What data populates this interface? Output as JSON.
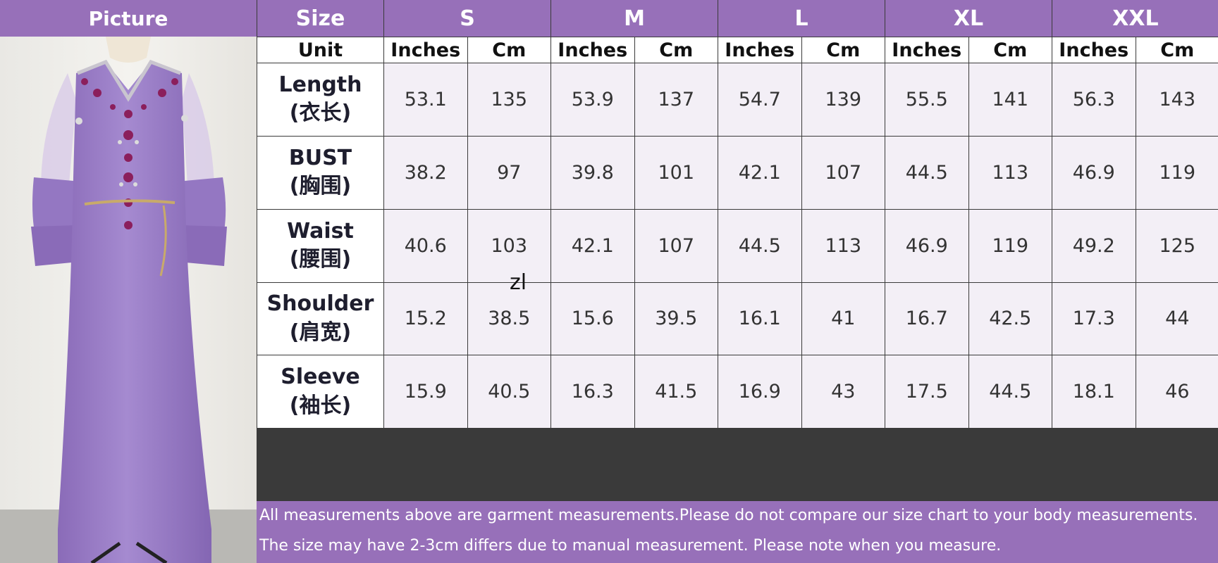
{
  "picture_header": "Picture",
  "size_header": "Size",
  "sizes": [
    "S",
    "M",
    "L",
    "XL",
    "XXL"
  ],
  "unit_row": {
    "label": "Unit",
    "inches": "Inches",
    "cm": "Cm"
  },
  "rows": [
    {
      "label": "Length",
      "label_cn": "(衣长)",
      "values": [
        "53.1",
        "135",
        "53.9",
        "137",
        "54.7",
        "139",
        "55.5",
        "141",
        "56.3",
        "143"
      ]
    },
    {
      "label": "BUST",
      "label_cn": "(胸围)",
      "values": [
        "38.2",
        "97",
        "39.8",
        "101",
        "42.1",
        "107",
        "44.5",
        "113",
        "46.9",
        "119"
      ]
    },
    {
      "label": "Waist",
      "label_cn": "(腰围)",
      "values": [
        "40.6",
        "103",
        "42.1",
        "107",
        "44.5",
        "113",
        "46.9",
        "119",
        "49.2",
        "125"
      ]
    },
    {
      "label": "Shoulder",
      "label_cn": "(肩宽)",
      "values": [
        "15.2",
        "38.5",
        "15.6",
        "39.5",
        "16.1",
        "41",
        "16.7",
        "42.5",
        "17.3",
        "44"
      ]
    },
    {
      "label": "Sleeve",
      "label_cn": "(袖长)",
      "values": [
        "15.9",
        "40.5",
        "16.3",
        "41.5",
        "16.9",
        "43",
        "17.5",
        "44.5",
        "18.1",
        "46"
      ]
    }
  ],
  "watermark": "zl",
  "notes": [
    "All measurements above are garment measurements.Please do not compare our size chart to your body measurements.",
    "The size may have 2-3cm differs due to manual measurement. Please note when you measure."
  ],
  "colors": {
    "header_purple": "#9770b9",
    "cell_lavender": "#f3eff6",
    "dress": "#9b7cc6"
  }
}
